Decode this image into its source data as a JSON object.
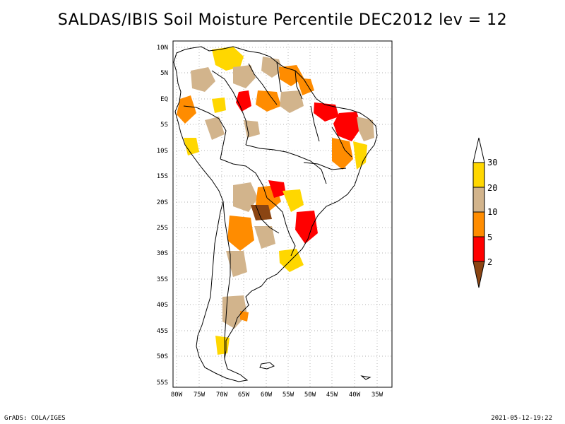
{
  "title": "SALDAS/IBIS Soil Moisture Percentile DEC2012 lev = 12",
  "footer": {
    "left": "GrADS: COLA/IGES",
    "right": "2021-05-12-19:22"
  },
  "axes": {
    "lat_labels": [
      "10N",
      "5N",
      "EQ",
      "5S",
      "10S",
      "15S",
      "20S",
      "25S",
      "30S",
      "35S",
      "40S",
      "45S",
      "50S",
      "55S"
    ],
    "lon_labels": [
      "80W",
      "75W",
      "70W",
      "65W",
      "60W",
      "55W",
      "50W",
      "45W",
      "40W",
      "35W"
    ]
  },
  "colorbar": {
    "labels": [
      "30",
      "20",
      "10",
      "5",
      "2"
    ],
    "colors": {
      "above30": "#ffffff",
      "20_30": "#ffd700",
      "10_20": "#d2b48c",
      "5_10": "#ff8c00",
      "2_5": "#ff0000",
      "below2": "#8b4513"
    }
  },
  "grid": {
    "lat_min": -55,
    "lat_max": 10,
    "lon_min": -80,
    "lon_max": -33
  }
}
